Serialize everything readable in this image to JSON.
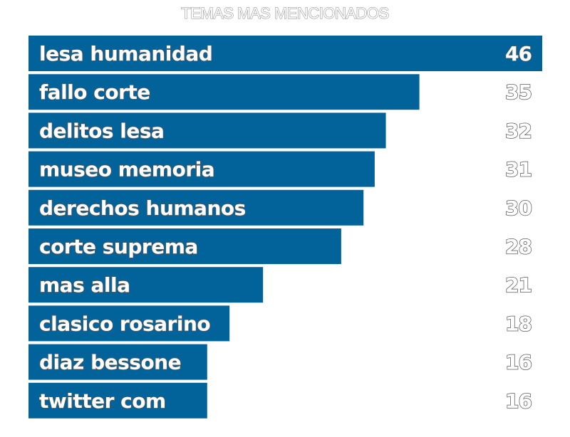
{
  "chart_data": {
    "type": "bar",
    "orientation": "horizontal",
    "title": "TEMAS MAS MENCIONADOS",
    "categories": [
      "lesa humanidad",
      "fallo corte",
      "delitos lesa",
      "museo memoria",
      "derechos humanos",
      "corte suprema",
      "mas alla",
      "clasico rosarino",
      "diaz bessone",
      "twitter com"
    ],
    "values": [
      46,
      35,
      32,
      31,
      30,
      28,
      21,
      18,
      16,
      16
    ],
    "xlim": [
      0,
      46
    ],
    "grid": false,
    "bar_color": "#02629a"
  }
}
